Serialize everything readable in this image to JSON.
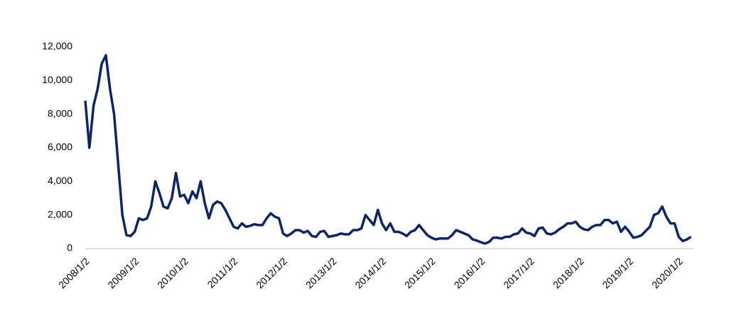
{
  "chart_data": {
    "type": "line",
    "color": "#0b2566",
    "grid": false,
    "x": [
      2008,
      2008.083,
      2008.167,
      2008.25,
      2008.333,
      2008.417,
      2008.5,
      2008.583,
      2008.667,
      2008.75,
      2008.833,
      2008.917,
      2009,
      2009.083,
      2009.167,
      2009.25,
      2009.333,
      2009.417,
      2009.5,
      2009.583,
      2009.667,
      2009.75,
      2009.833,
      2009.917,
      2010,
      2010.083,
      2010.167,
      2010.25,
      2010.333,
      2010.417,
      2010.5,
      2010.583,
      2010.667,
      2010.75,
      2010.833,
      2010.917,
      2011,
      2011.083,
      2011.167,
      2011.25,
      2011.333,
      2011.417,
      2011.5,
      2011.583,
      2011.667,
      2011.75,
      2011.833,
      2011.917,
      2012,
      2012.083,
      2012.167,
      2012.25,
      2012.333,
      2012.417,
      2012.5,
      2012.583,
      2012.667,
      2012.75,
      2012.833,
      2012.917,
      2013,
      2013.083,
      2013.167,
      2013.25,
      2013.333,
      2013.417,
      2013.5,
      2013.583,
      2013.667,
      2013.75,
      2013.833,
      2013.917,
      2014,
      2014.083,
      2014.167,
      2014.25,
      2014.333,
      2014.417,
      2014.5,
      2014.583,
      2014.667,
      2014.75,
      2014.833,
      2014.917,
      2015,
      2015.083,
      2015.167,
      2015.25,
      2015.333,
      2015.417,
      2015.5,
      2015.583,
      2015.667,
      2015.75,
      2015.833,
      2015.917,
      2016,
      2016.083,
      2016.167,
      2016.25,
      2016.333,
      2016.417,
      2016.5,
      2016.583,
      2016.667,
      2016.75,
      2016.833,
      2016.917,
      2017,
      2017.083,
      2017.167,
      2017.25,
      2017.333,
      2017.417,
      2017.5,
      2017.583,
      2017.667,
      2017.75,
      2017.833,
      2017.917,
      2018,
      2018.083,
      2018.167,
      2018.25,
      2018.333,
      2018.417,
      2018.5,
      2018.583,
      2018.667,
      2018.75,
      2018.833,
      2018.917,
      2019,
      2019.083,
      2019.167,
      2019.25,
      2019.333,
      2019.417,
      2019.5,
      2019.583,
      2019.667,
      2019.75,
      2019.833,
      2019.917,
      2020,
      2020.083,
      2020.167,
      2020.25
    ],
    "values": [
      8800,
      6000,
      8500,
      9500,
      11000,
      11500,
      9500,
      8000,
      5000,
      2000,
      800,
      750,
      1000,
      1800,
      1700,
      1800,
      2500,
      4000,
      3300,
      2500,
      2400,
      3000,
      4500,
      3100,
      3200,
      2700,
      3400,
      3000,
      4000,
      2700,
      1800,
      2600,
      2800,
      2700,
      2300,
      1800,
      1300,
      1200,
      1500,
      1300,
      1350,
      1450,
      1400,
      1400,
      1800,
      2100,
      1900,
      1800,
      900,
      750,
      900,
      1100,
      1100,
      950,
      1050,
      750,
      700,
      1000,
      1050,
      700,
      750,
      800,
      900,
      850,
      850,
      1100,
      1100,
      1200,
      2000,
      1700,
      1400,
      2300,
      1500,
      1100,
      1500,
      1000,
      1000,
      900,
      750,
      1000,
      1100,
      1400,
      1100,
      800,
      650,
      550,
      600,
      600,
      600,
      800,
      1100,
      1000,
      900,
      800,
      550,
      480,
      380,
      300,
      400,
      650,
      650,
      600,
      700,
      700,
      850,
      900,
      1200,
      950,
      900,
      750,
      1200,
      1250,
      900,
      850,
      950,
      1150,
      1300,
      1500,
      1500,
      1600,
      1300,
      1150,
      1100,
      1300,
      1400,
      1400,
      1700,
      1700,
      1500,
      1600,
      1000,
      1300,
      1000,
      650,
      700,
      800,
      1050,
      1300,
      2000,
      2100,
      2500,
      1900,
      1500,
      1500,
      700,
      450,
      550,
      700
    ],
    "xlim": [
      2008,
      2020.3
    ],
    "xticks": [
      {
        "value": 2008,
        "label": "2008/1/2"
      },
      {
        "value": 2009,
        "label": "2009/1/2"
      },
      {
        "value": 2010,
        "label": "2010/1/2"
      },
      {
        "value": 2011,
        "label": "2011/1/2"
      },
      {
        "value": 2012,
        "label": "2012/1/2"
      },
      {
        "value": 2013,
        "label": "2013/1/2"
      },
      {
        "value": 2014,
        "label": "2014/1/2"
      },
      {
        "value": 2015,
        "label": "2015/1/2"
      },
      {
        "value": 2016,
        "label": "2016/1/2"
      },
      {
        "value": 2017,
        "label": "2017/1/2"
      },
      {
        "value": 2018,
        "label": "2018/1/2"
      },
      {
        "value": 2019,
        "label": "2019/1/2"
      },
      {
        "value": 2020,
        "label": "2020/1/2"
      }
    ],
    "ylim": [
      0,
      12000
    ],
    "yticks": [
      0,
      {
        "value": 2000,
        "label": "2,000"
      },
      {
        "value": 4000,
        "label": "4,000"
      },
      {
        "value": 6000,
        "label": "6,000"
      },
      {
        "value": 8000,
        "label": "8,000"
      },
      {
        "value": 10000,
        "label": "10,000"
      },
      {
        "value": 12000,
        "label": "12,000"
      }
    ]
  }
}
